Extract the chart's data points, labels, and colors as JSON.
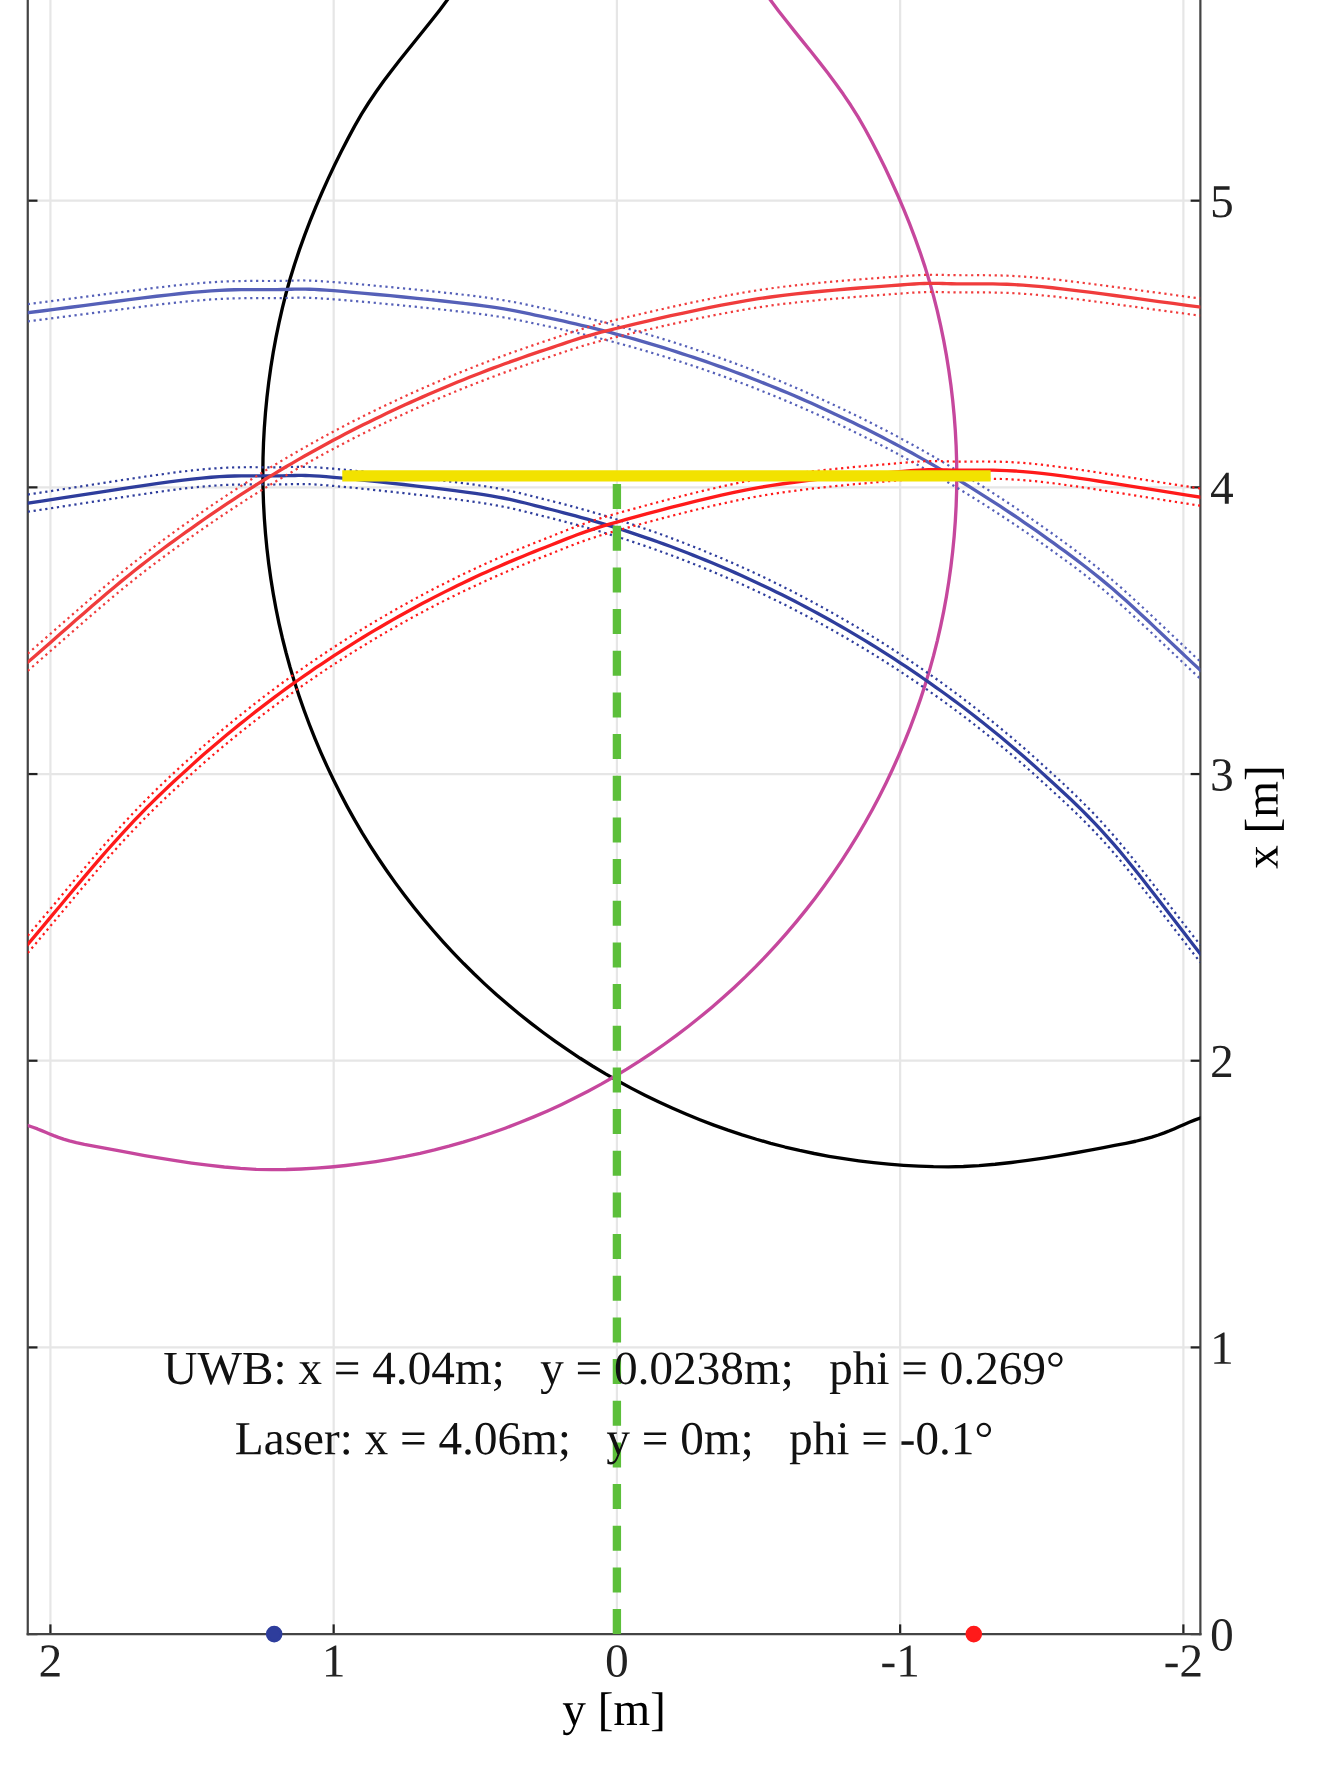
{
  "chart_data": {
    "type": "line",
    "xlabel": "y [m]",
    "ylabel": "x [m]",
    "xlim": [
      2.08,
      -2.06
    ],
    "ylim": [
      0,
      5.7
    ],
    "xticks": [
      2,
      1,
      0,
      -1,
      -2
    ],
    "yticks": [
      0,
      1,
      2,
      3,
      4,
      5
    ],
    "grid": true,
    "series": [
      {
        "color": "#000000",
        "x": [
          0.599,
          0.926,
          1.168,
          1.25,
          1.168,
          0.926,
          0.541,
          0.04,
          -0.543,
          -1.17,
          -1.797,
          -2.06
        ],
        "values": [
          5.7,
          5.26,
          4.677,
          4.05,
          3.423,
          2.84,
          2.339,
          1.954,
          1.712,
          1.63,
          1.712,
          1.8
        ]
      },
      {
        "color": "#c6479d",
        "x": [
          -0.542,
          -0.876,
          -1.118,
          -1.2,
          -1.118,
          -0.876,
          -0.491,
          0.01,
          0.593,
          1.22,
          1.847,
          2.08
        ],
        "values": [
          5.7,
          5.25,
          4.667,
          4.04,
          3.413,
          2.83,
          2.329,
          1.944,
          1.702,
          1.62,
          1.702,
          1.774
        ]
      },
      {
        "color": "#5560b8",
        "x": [
          2.08,
          1.5,
          1.2,
          1.0,
          0.5,
          0.25,
          0,
          -0.25,
          -0.5,
          -0.75,
          -1.0,
          -1.25,
          -1.5,
          -1.75,
          -2.06
        ],
        "values": [
          4.609,
          4.68,
          4.69,
          4.686,
          4.637,
          4.593,
          4.534,
          4.46,
          4.371,
          4.265,
          4.142,
          3.999,
          3.835,
          3.646,
          3.362
        ]
      },
      {
        "color": "#5560b8",
        "line_style": "dotted",
        "x": [
          2.08,
          1.5,
          1.2,
          1.0,
          0.5,
          0.25,
          0,
          -0.25,
          -0.5,
          -0.75,
          -1.0,
          -1.25,
          -1.5,
          -1.75,
          -2.06
        ],
        "values": [
          4.579,
          4.65,
          4.66,
          4.656,
          4.607,
          4.563,
          4.504,
          4.43,
          4.341,
          4.235,
          4.112,
          3.969,
          3.805,
          3.616,
          3.332
        ]
      },
      {
        "color": "#5560b8",
        "line_style": "dotted",
        "x": [
          2.08,
          1.5,
          1.2,
          1.0,
          0.5,
          0.25,
          0,
          -0.25,
          -0.5,
          -0.75,
          -1.0,
          -1.25,
          -1.5,
          -1.75,
          -2.06
        ],
        "values": [
          4.639,
          4.71,
          4.72,
          4.716,
          4.667,
          4.623,
          4.564,
          4.49,
          4.401,
          4.295,
          4.172,
          4.029,
          3.865,
          3.676,
          3.392
        ]
      },
      {
        "color": "#2e3d9c",
        "x": [
          2.08,
          1.5,
          1.2,
          1.0,
          0.5,
          0.25,
          0,
          -0.25,
          -0.5,
          -0.75,
          -1.0,
          -1.25,
          -1.5,
          -1.75,
          -2.06
        ],
        "values": [
          3.945,
          4.029,
          4.04,
          4.035,
          3.979,
          3.927,
          3.858,
          3.771,
          3.665,
          3.538,
          3.388,
          3.212,
          3.005,
          2.76,
          2.373
        ]
      },
      {
        "color": "#2e3d9c",
        "line_style": "dotted",
        "x": [
          2.08,
          1.5,
          1.2,
          1.0,
          0.5,
          0.25,
          0,
          -0.25,
          -0.5,
          -0.75,
          -1.0,
          -1.25,
          -1.5,
          -1.75,
          -2.06
        ],
        "values": [
          3.915,
          3.999,
          4.01,
          4.005,
          3.949,
          3.897,
          3.828,
          3.741,
          3.635,
          3.508,
          3.358,
          3.182,
          2.975,
          2.73,
          2.343
        ]
      },
      {
        "color": "#2e3d9c",
        "line_style": "dotted",
        "x": [
          2.08,
          1.5,
          1.2,
          1.0,
          0.5,
          0.25,
          0,
          -0.25,
          -0.5,
          -0.75,
          -1.0,
          -1.25,
          -1.5,
          -1.75,
          -2.06
        ],
        "values": [
          3.975,
          4.059,
          4.07,
          4.065,
          4.009,
          3.957,
          3.888,
          3.801,
          3.695,
          3.568,
          3.418,
          3.242,
          3.035,
          2.79,
          2.403
        ]
      },
      {
        "color": "#f03c3c",
        "x": [
          2.08,
          1.75,
          1.5,
          1.25,
          1.0,
          0.75,
          0.5,
          0.25,
          0,
          -0.5,
          -1.0,
          -1.2,
          -1.5,
          -2.06
        ],
        "values": [
          3.39,
          3.672,
          3.859,
          4.023,
          4.165,
          4.287,
          4.392,
          4.481,
          4.555,
          4.658,
          4.706,
          4.71,
          4.7,
          4.629
        ]
      },
      {
        "color": "#f03c3c",
        "line_style": "dotted",
        "x": [
          2.08,
          1.75,
          1.5,
          1.25,
          1.0,
          0.75,
          0.5,
          0.25,
          0,
          -0.5,
          -1.0,
          -1.2,
          -1.5,
          -2.06
        ],
        "values": [
          3.36,
          3.642,
          3.829,
          3.993,
          4.135,
          4.257,
          4.362,
          4.451,
          4.525,
          4.628,
          4.676,
          4.68,
          4.67,
          4.599
        ]
      },
      {
        "color": "#f03c3c",
        "line_style": "dotted",
        "x": [
          2.08,
          1.75,
          1.5,
          1.25,
          1.0,
          0.75,
          0.5,
          0.25,
          0,
          -0.5,
          -1.0,
          -1.2,
          -1.5,
          -2.06
        ],
        "values": [
          3.42,
          3.702,
          3.889,
          4.053,
          4.195,
          4.317,
          4.422,
          4.511,
          4.585,
          4.688,
          4.736,
          4.74,
          4.73,
          4.659
        ]
      },
      {
        "color": "#ff1a1a",
        "x": [
          2.08,
          1.75,
          1.5,
          1.25,
          1.0,
          0.75,
          0.5,
          0.25,
          0,
          -0.5,
          -1.0,
          -1.2,
          -1.5,
          -2.06
        ],
        "values": [
          2.406,
          2.789,
          3.032,
          3.237,
          3.412,
          3.561,
          3.687,
          3.792,
          3.879,
          3.999,
          4.055,
          4.06,
          4.049,
          3.966
        ]
      },
      {
        "color": "#ff1a1a",
        "line_style": "dotted",
        "x": [
          2.08,
          1.75,
          1.5,
          1.25,
          1.0,
          0.75,
          0.5,
          0.25,
          0,
          -0.5,
          -1.0,
          -1.2,
          -1.5,
          -2.06
        ],
        "values": [
          2.376,
          2.759,
          3.002,
          3.207,
          3.382,
          3.531,
          3.657,
          3.762,
          3.849,
          3.969,
          4.025,
          4.03,
          4.019,
          3.936
        ]
      },
      {
        "color": "#ff1a1a",
        "line_style": "dotted",
        "x": [
          2.08,
          1.75,
          1.5,
          1.25,
          1.0,
          0.75,
          0.5,
          0.25,
          0,
          -0.5,
          -1.0,
          -1.2,
          -1.5,
          -2.06
        ],
        "values": [
          2.436,
          2.819,
          3.062,
          3.267,
          3.442,
          3.591,
          3.717,
          3.822,
          3.909,
          4.029,
          4.085,
          4.09,
          4.079,
          3.996
        ]
      },
      {
        "color": "#f2e200",
        "x": [
          0.95,
          -1.3
        ],
        "values": [
          4.04,
          4.04
        ]
      },
      {
        "color": "#5cbf3a",
        "line_style": "dashed",
        "x": [
          0,
          0
        ],
        "values": [
          0,
          4.04
        ]
      },
      {
        "type": "scatter",
        "marker": "circle",
        "color": "#2e3d9c",
        "x": [
          1.21
        ],
        "values": [
          0
        ]
      },
      {
        "type": "scatter",
        "marker": "circle",
        "color": "#ff1a1a",
        "x": [
          -1.26
        ],
        "values": [
          0
        ]
      }
    ],
    "annotations": [
      "UWB: x = 4.04m;   y = 0.0238m;   phi = 0.269°",
      "Laser: x = 4.06m;   y = 0m;   phi = -0.1°"
    ]
  }
}
